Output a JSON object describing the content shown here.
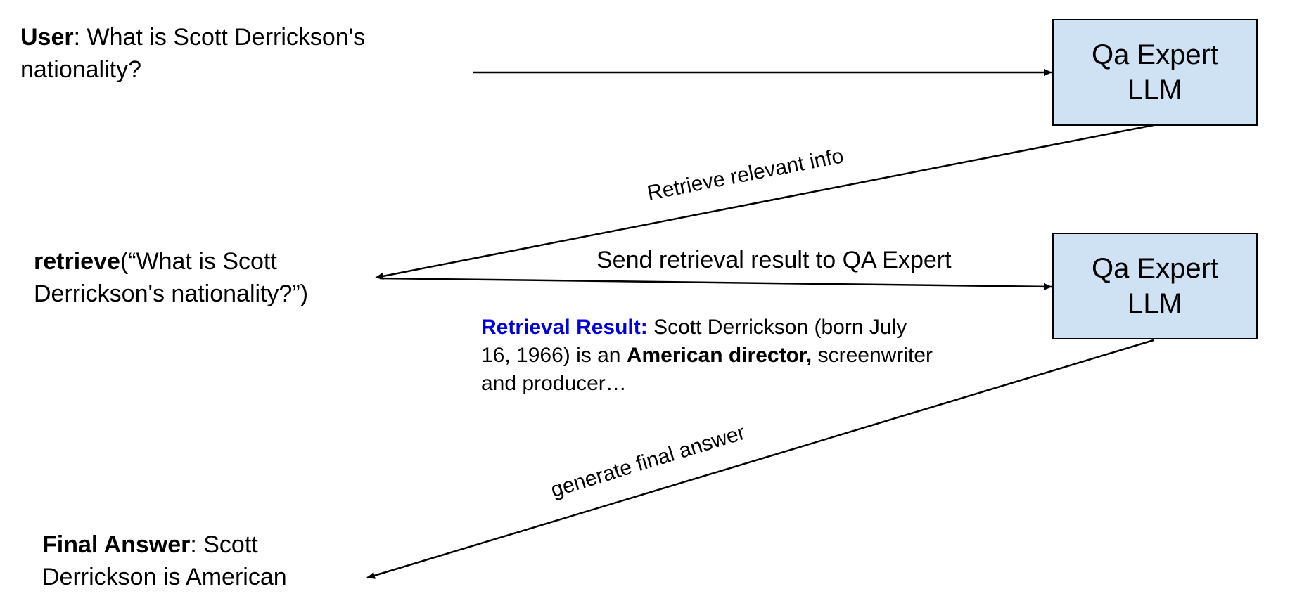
{
  "user_query": {
    "role": "User",
    "line1": ": What is Scott Derrickson's",
    "line2": "nationality?"
  },
  "retrieve_call": {
    "function": "retrieve",
    "line1": "(“What is Scott",
    "line2": "Derrickson's nationality?”)"
  },
  "final_answer": {
    "label": "Final Answer",
    "line1": ": Scott",
    "line2": "Derrickson is American"
  },
  "nodes": [
    {
      "line1": "Qa Expert",
      "line2": "LLM"
    },
    {
      "line1": "Qa Expert",
      "line2": "LLM"
    }
  ],
  "edges": {
    "retrieve_relevant_info": "Retrieve relevant info",
    "send_result": "Send retrieval result to QA Expert",
    "generate_final_answer": "generate final answer"
  },
  "retrieval_result": {
    "label": "Retrieval Result:",
    "text_before": " Scott Derrickson (born July",
    "text_line2_start": "16, 1966) is an ",
    "highlight": "American director,",
    "text_after": " screenwriter",
    "text_line3": "and producer…"
  },
  "colors": {
    "node_fill": "#cfe2f3",
    "retrieval_label": "#0000dd",
    "lines": "#000000"
  }
}
